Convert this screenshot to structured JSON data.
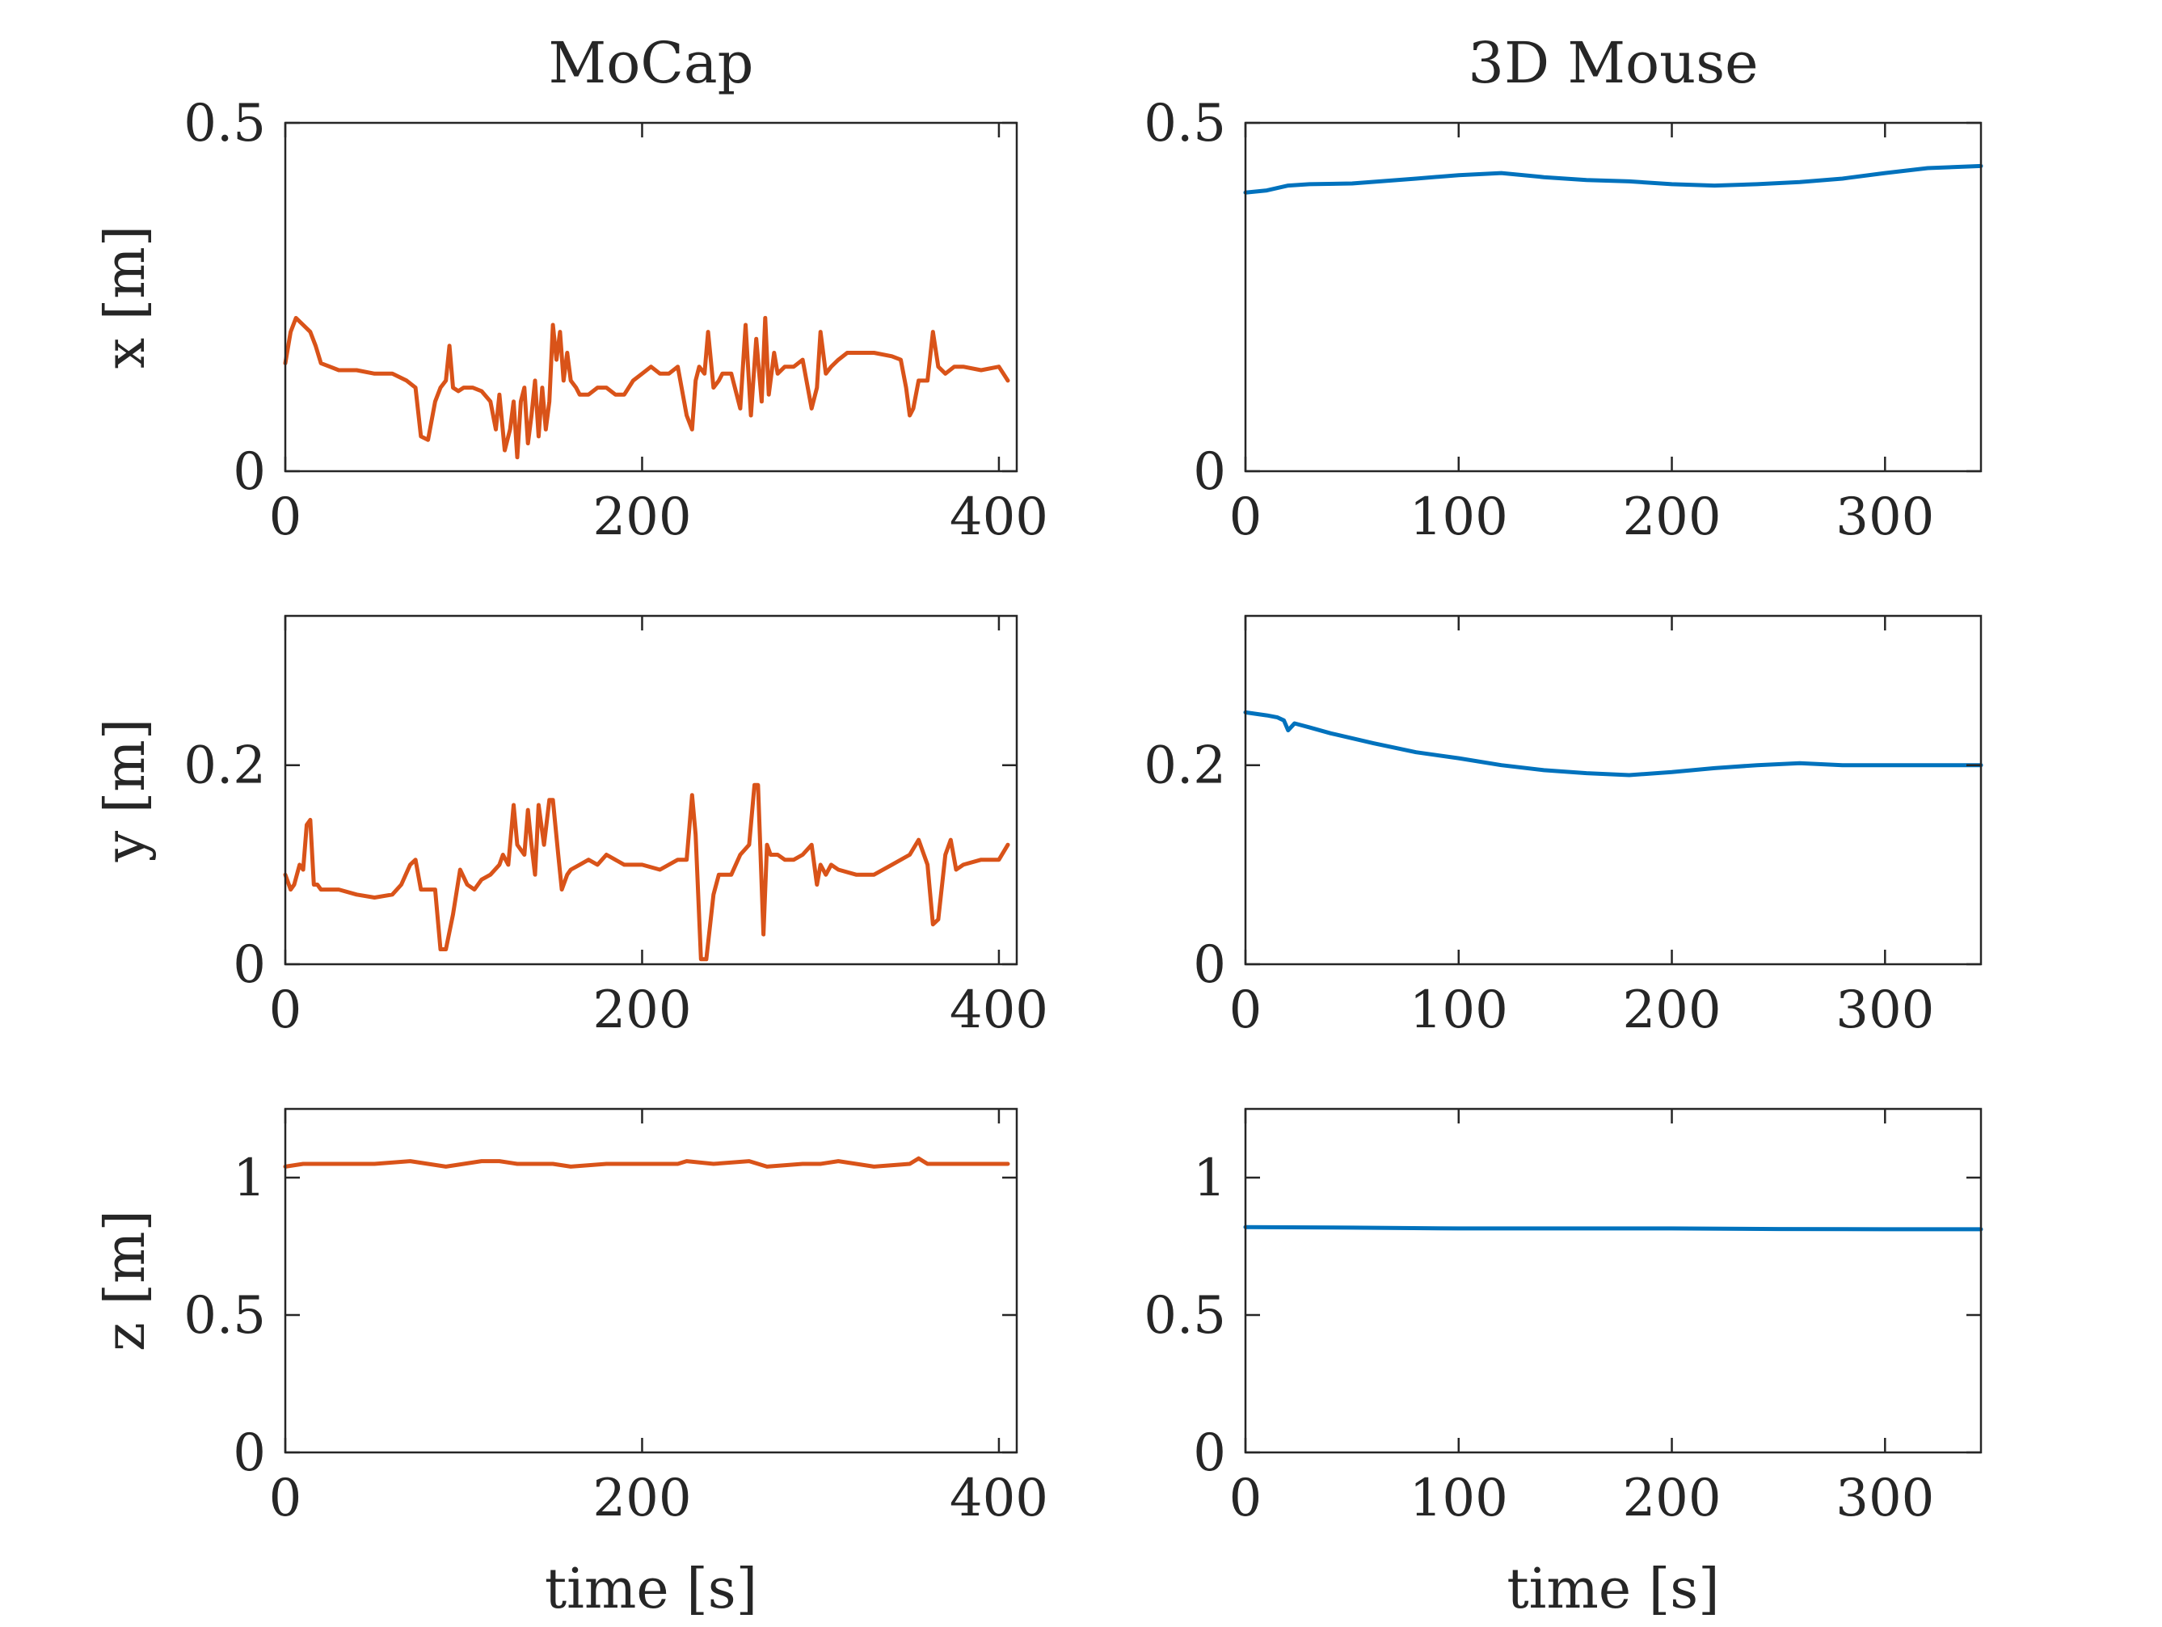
{
  "colors": {
    "mocap": "#D95319",
    "mouse": "#0072BD",
    "axis": "#262626"
  },
  "chart_data": [
    {
      "type": "line",
      "column": "left",
      "row": 0,
      "title": "MoCap",
      "ylabel": "x [m]",
      "xlabel": "",
      "xlim": [
        0,
        410
      ],
      "ylim": [
        0,
        0.5
      ],
      "xticks": [
        0,
        200,
        400
      ],
      "xtick_labels": [
        "0",
        "200",
        "400"
      ],
      "yticks": [
        0,
        0.5
      ],
      "ytick_labels": [
        "0",
        "0.5"
      ],
      "series": [
        {
          "color_key": "mocap",
          "x": [
            0,
            3,
            6,
            10,
            14,
            17,
            20,
            25,
            30,
            40,
            50,
            60,
            68,
            73,
            76,
            80,
            84,
            87,
            90,
            92,
            94,
            97,
            100,
            105,
            110,
            115,
            118,
            120,
            123,
            126,
            128,
            130,
            132,
            134,
            136,
            138,
            140,
            142,
            144,
            146,
            148,
            150,
            152,
            154,
            156,
            158,
            160,
            163,
            165,
            170,
            175,
            180,
            185,
            190,
            195,
            200,
            205,
            210,
            215,
            220,
            225,
            228,
            230,
            232,
            235,
            237,
            240,
            243,
            245,
            250,
            255,
            258,
            261,
            264,
            267,
            269,
            271,
            274,
            276,
            280,
            285,
            290,
            295,
            298,
            300,
            303,
            306,
            310,
            315,
            320,
            330,
            340,
            345,
            348,
            350,
            352,
            355,
            360,
            363,
            366,
            370,
            375,
            380,
            390,
            400,
            405
          ],
          "y": [
            0.155,
            0.2,
            0.22,
            0.21,
            0.2,
            0.18,
            0.155,
            0.15,
            0.145,
            0.145,
            0.14,
            0.14,
            0.13,
            0.12,
            0.05,
            0.045,
            0.1,
            0.12,
            0.13,
            0.18,
            0.12,
            0.115,
            0.12,
            0.12,
            0.115,
            0.1,
            0.06,
            0.11,
            0.03,
            0.06,
            0.1,
            0.02,
            0.1,
            0.12,
            0.04,
            0.08,
            0.13,
            0.05,
            0.12,
            0.06,
            0.1,
            0.21,
            0.16,
            0.2,
            0.13,
            0.17,
            0.13,
            0.12,
            0.11,
            0.11,
            0.12,
            0.12,
            0.11,
            0.11,
            0.13,
            0.14,
            0.15,
            0.14,
            0.14,
            0.15,
            0.08,
            0.06,
            0.13,
            0.15,
            0.14,
            0.2,
            0.12,
            0.13,
            0.14,
            0.14,
            0.09,
            0.21,
            0.08,
            0.19,
            0.1,
            0.22,
            0.11,
            0.17,
            0.14,
            0.15,
            0.15,
            0.16,
            0.09,
            0.12,
            0.2,
            0.14,
            0.15,
            0.16,
            0.17,
            0.17,
            0.17,
            0.165,
            0.16,
            0.12,
            0.08,
            0.09,
            0.13,
            0.13,
            0.2,
            0.15,
            0.14,
            0.15,
            0.15,
            0.145,
            0.15,
            0.13
          ]
        }
      ]
    },
    {
      "type": "line",
      "column": "right",
      "row": 0,
      "title": "3D Mouse",
      "ylabel": "",
      "xlabel": "",
      "xlim": [
        0,
        345
      ],
      "ylim": [
        0,
        0.5
      ],
      "xticks": [
        0,
        100,
        200,
        300
      ],
      "xtick_labels": [
        "0",
        "100",
        "200",
        "300"
      ],
      "yticks": [
        0,
        0.5
      ],
      "ytick_labels": [
        "0",
        "0.5"
      ],
      "series": [
        {
          "color_key": "mouse",
          "x": [
            0,
            10,
            20,
            30,
            50,
            80,
            100,
            120,
            140,
            160,
            180,
            200,
            220,
            240,
            260,
            280,
            300,
            320,
            345
          ],
          "y": [
            0.4,
            0.403,
            0.41,
            0.412,
            0.413,
            0.42,
            0.425,
            0.428,
            0.422,
            0.418,
            0.416,
            0.412,
            0.41,
            0.412,
            0.415,
            0.42,
            0.428,
            0.435,
            0.438
          ]
        }
      ]
    },
    {
      "type": "line",
      "column": "left",
      "row": 1,
      "title": "",
      "ylabel": "y [m]",
      "xlabel": "",
      "xlim": [
        0,
        410
      ],
      "ylim": [
        0,
        0.35
      ],
      "xticks": [
        0,
        200,
        400
      ],
      "xtick_labels": [
        "0",
        "200",
        "400"
      ],
      "yticks": [
        0,
        0.2
      ],
      "ytick_labels": [
        "0",
        "0.2"
      ],
      "series": [
        {
          "color_key": "mocap",
          "x": [
            0,
            3,
            5,
            8,
            10,
            12,
            14,
            16,
            18,
            20,
            30,
            40,
            50,
            60,
            65,
            70,
            73,
            76,
            80,
            84,
            87,
            90,
            94,
            98,
            102,
            106,
            110,
            115,
            120,
            122,
            125,
            128,
            130,
            134,
            136,
            138,
            140,
            142,
            145,
            148,
            150,
            153,
            155,
            158,
            160,
            165,
            170,
            175,
            180,
            190,
            200,
            210,
            220,
            225,
            228,
            230,
            233,
            236,
            240,
            243,
            246,
            250,
            255,
            260,
            263,
            265,
            268,
            270,
            272,
            276,
            280,
            285,
            290,
            295,
            298,
            300,
            303,
            306,
            310,
            320,
            330,
            340,
            350,
            355,
            360,
            363,
            366,
            370,
            373,
            376,
            380,
            390,
            400,
            405
          ],
          "y": [
            0.09,
            0.075,
            0.08,
            0.1,
            0.095,
            0.14,
            0.145,
            0.08,
            0.08,
            0.075,
            0.075,
            0.07,
            0.067,
            0.07,
            0.08,
            0.1,
            0.105,
            0.075,
            0.075,
            0.075,
            0.015,
            0.015,
            0.05,
            0.095,
            0.08,
            0.075,
            0.085,
            0.09,
            0.1,
            0.11,
            0.1,
            0.16,
            0.12,
            0.11,
            0.155,
            0.12,
            0.09,
            0.16,
            0.12,
            0.165,
            0.165,
            0.11,
            0.075,
            0.09,
            0.095,
            0.1,
            0.105,
            0.1,
            0.11,
            0.1,
            0.1,
            0.095,
            0.105,
            0.105,
            0.17,
            0.13,
            0.005,
            0.005,
            0.07,
            0.09,
            0.09,
            0.09,
            0.11,
            0.12,
            0.18,
            0.18,
            0.03,
            0.12,
            0.11,
            0.11,
            0.105,
            0.105,
            0.11,
            0.12,
            0.08,
            0.1,
            0.09,
            0.1,
            0.095,
            0.09,
            0.09,
            0.1,
            0.11,
            0.125,
            0.1,
            0.04,
            0.045,
            0.11,
            0.125,
            0.095,
            0.1,
            0.105,
            0.105,
            0.12
          ]
        }
      ]
    },
    {
      "type": "line",
      "column": "right",
      "row": 1,
      "title": "",
      "ylabel": "",
      "xlabel": "",
      "xlim": [
        0,
        345
      ],
      "ylim": [
        0,
        0.35
      ],
      "xticks": [
        0,
        100,
        200,
        300
      ],
      "xtick_labels": [
        "0",
        "100",
        "200",
        "300"
      ],
      "yticks": [
        0,
        0.2
      ],
      "ytick_labels": [
        "0",
        "0.2"
      ],
      "series": [
        {
          "color_key": "mouse",
          "x": [
            0,
            10,
            15,
            18,
            20,
            23,
            30,
            40,
            60,
            80,
            100,
            120,
            140,
            160,
            180,
            200,
            220,
            240,
            260,
            280,
            300,
            320,
            345
          ],
          "y": [
            0.253,
            0.25,
            0.248,
            0.245,
            0.235,
            0.242,
            0.238,
            0.232,
            0.222,
            0.213,
            0.207,
            0.2,
            0.195,
            0.192,
            0.19,
            0.193,
            0.197,
            0.2,
            0.202,
            0.2,
            0.2,
            0.2,
            0.2
          ]
        }
      ]
    },
    {
      "type": "line",
      "column": "left",
      "row": 2,
      "title": "",
      "ylabel": "z [m]",
      "xlabel": "time [s]",
      "xlim": [
        0,
        410
      ],
      "ylim": [
        0,
        1.25
      ],
      "xticks": [
        0,
        200,
        400
      ],
      "xtick_labels": [
        "0",
        "200",
        "400"
      ],
      "yticks": [
        0,
        0.5,
        1
      ],
      "ytick_labels": [
        "0",
        "0.5",
        "1"
      ],
      "series": [
        {
          "color_key": "mocap",
          "x": [
            0,
            10,
            30,
            50,
            70,
            90,
            110,
            120,
            130,
            150,
            160,
            180,
            200,
            220,
            225,
            240,
            260,
            270,
            290,
            300,
            310,
            330,
            350,
            355,
            360,
            380,
            405
          ],
          "y": [
            1.04,
            1.05,
            1.05,
            1.05,
            1.06,
            1.04,
            1.06,
            1.06,
            1.05,
            1.05,
            1.04,
            1.05,
            1.05,
            1.05,
            1.06,
            1.05,
            1.06,
            1.04,
            1.05,
            1.05,
            1.06,
            1.04,
            1.05,
            1.07,
            1.05,
            1.05,
            1.05
          ]
        }
      ]
    },
    {
      "type": "line",
      "column": "right",
      "row": 2,
      "title": "",
      "ylabel": "",
      "xlabel": "time [s]",
      "xlim": [
        0,
        345
      ],
      "ylim": [
        0,
        1.25
      ],
      "xticks": [
        0,
        100,
        200,
        300
      ],
      "xtick_labels": [
        "0",
        "100",
        "200",
        "300"
      ],
      "yticks": [
        0,
        0.5,
        1
      ],
      "ytick_labels": [
        "0",
        "0.5",
        "1"
      ],
      "series": [
        {
          "color_key": "mouse",
          "x": [
            0,
            50,
            100,
            150,
            200,
            250,
            300,
            345
          ],
          "y": [
            0.82,
            0.818,
            0.815,
            0.815,
            0.815,
            0.813,
            0.812,
            0.812
          ]
        }
      ]
    }
  ]
}
